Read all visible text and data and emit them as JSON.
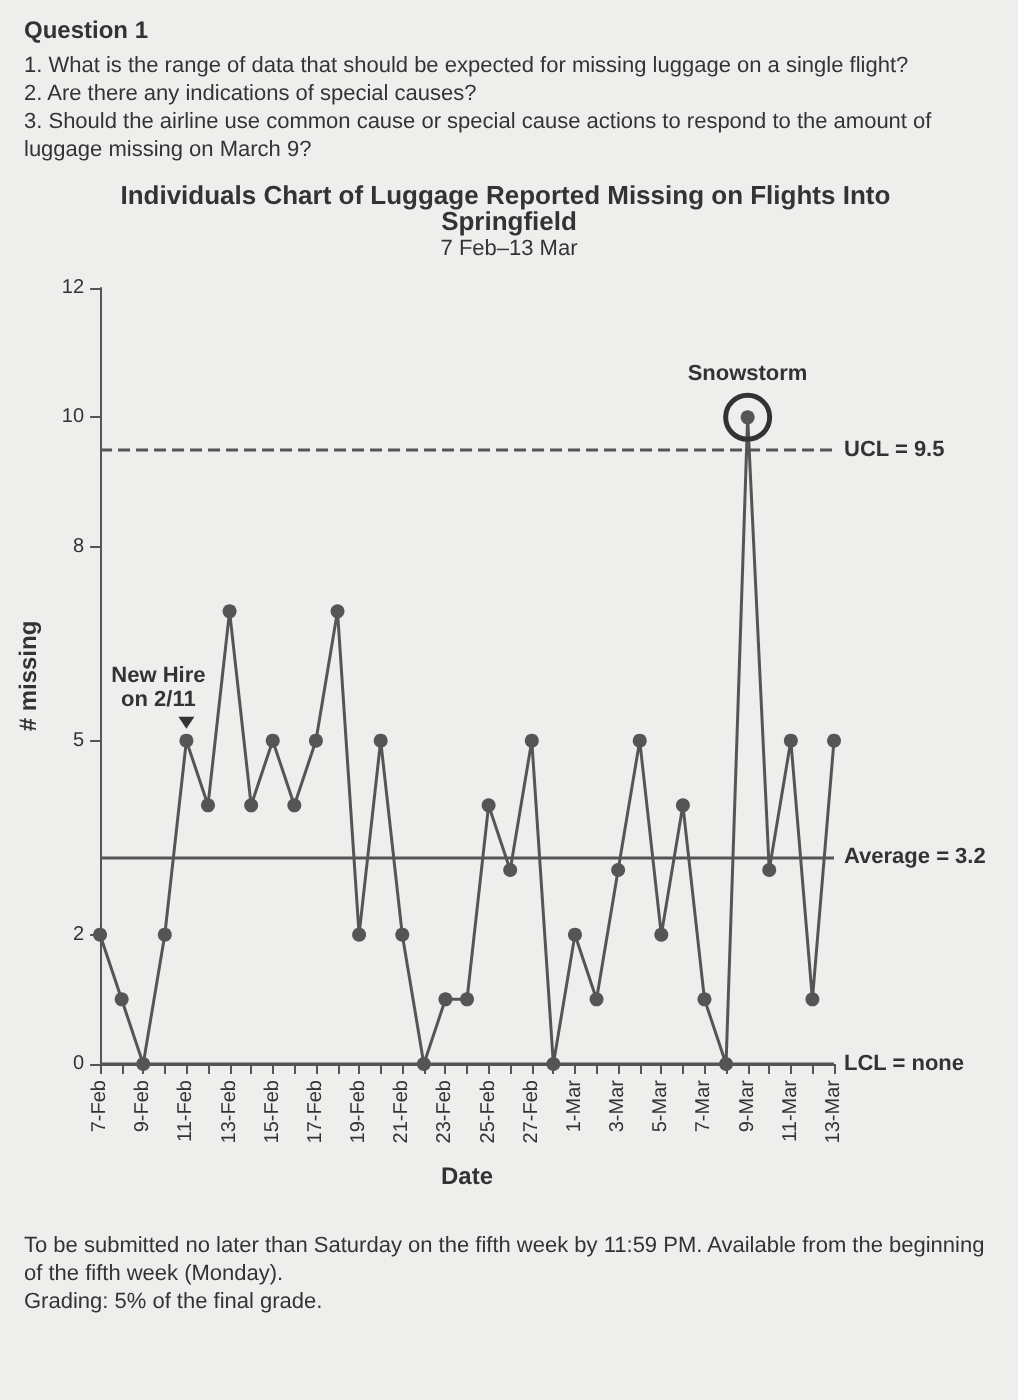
{
  "chart_data": {
    "type": "line",
    "title": "Individuals Chart of Luggage Reported Missing on Flights Into Springfield",
    "subtitle": "7 Feb–13 Mar",
    "xlabel": "Date",
    "ylabel": "# missing",
    "categories": [
      "7-Feb",
      null,
      "9-Feb",
      null,
      "11-Feb",
      null,
      "13-Feb",
      null,
      "15-Feb",
      null,
      "17-Feb",
      null,
      "19-Feb",
      null,
      "21-Feb",
      null,
      "23-Feb",
      null,
      "25-Feb",
      null,
      "27-Feb",
      null,
      "1-Mar",
      null,
      "3-Mar",
      null,
      "5-Mar",
      null,
      "7-Mar",
      null,
      "9-Mar",
      null,
      "11-Mar",
      null,
      "13-Mar"
    ],
    "series": [
      {
        "color": "#555555",
        "values": [
          2,
          1,
          0,
          2,
          5,
          4,
          7,
          4,
          5,
          4,
          5,
          7,
          2,
          5,
          2,
          0,
          1,
          1,
          4,
          3,
          5,
          0,
          2,
          1,
          3,
          5,
          2,
          4,
          1,
          0,
          10,
          3,
          5,
          1,
          5
        ]
      }
    ],
    "ylim": [
      0,
      12
    ],
    "yticks": [
      0,
      2,
      5,
      8,
      10,
      12
    ],
    "ref_lines": [
      {
        "axis": "y",
        "value": 9.5,
        "label": "UCL = 9.5",
        "line_style": "dashed"
      },
      {
        "axis": "y",
        "value": 3.2,
        "label": "Average = 3.2",
        "line_style": "solid"
      },
      {
        "axis": "y",
        "value": 0,
        "label": "LCL = none",
        "line_style": "solid"
      }
    ],
    "annotations": [
      "Question 1",
      "1. What is the range of data that should be expected for missing luggage on a single flight?",
      "2. Are there any indications of special causes?",
      "3. Should the airline use common cause or special cause actions to respond to the amount of luggage missing on March 9?",
      "To be submitted no later than Saturday on the fifth week by 11:59 PM. Available from the beginning of the fifth week (Monday).",
      "Grading: 5% of the final grade.",
      {
        "text": "New Hire on 2/11",
        "x": "11-Feb",
        "y": 5
      },
      {
        "text": "Snowstorm",
        "x": "9-Mar",
        "y": 10
      }
    ],
    "grid": false,
    "marker": "circle",
    "line_style": "solid"
  }
}
